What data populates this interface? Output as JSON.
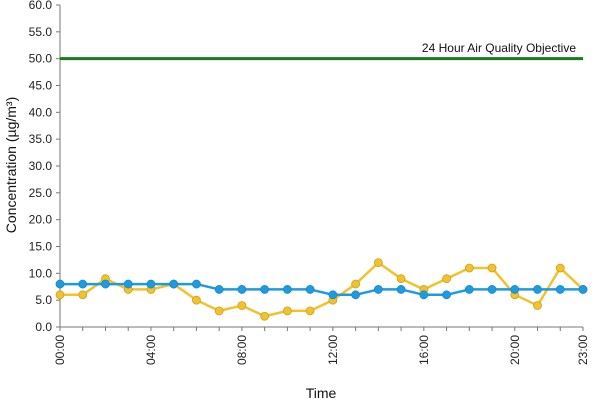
{
  "chart_data": {
    "type": "line",
    "title": "",
    "xlabel": "Time",
    "ylabel": "Concentration (µg/m³)",
    "ylim": [
      0,
      60
    ],
    "y_ticks": [
      "0.0",
      "5.0",
      "10.0",
      "15.0",
      "20.0",
      "25.0",
      "30.0",
      "35.0",
      "40.0",
      "45.0",
      "50.0",
      "55.0",
      "60.0"
    ],
    "x": [
      0,
      1,
      2,
      3,
      4,
      5,
      6,
      7,
      8,
      9,
      10,
      11,
      12,
      13,
      14,
      15,
      16,
      17,
      18,
      19,
      20,
      21,
      22,
      23
    ],
    "x_tick_labels": [
      {
        "x": 0,
        "label": "00:00"
      },
      {
        "x": 4,
        "label": "04:00"
      },
      {
        "x": 8,
        "label": "08:00"
      },
      {
        "x": 12,
        "label": "12:00"
      },
      {
        "x": 16,
        "label": "16:00"
      },
      {
        "x": 20,
        "label": "20:00"
      },
      {
        "x": 23,
        "label": "23:00"
      }
    ],
    "grid": false,
    "legend": "none",
    "series": [
      {
        "color": "#f2c22c",
        "values": [
          6,
          6,
          9,
          7,
          7,
          8,
          5,
          3,
          4,
          2,
          3,
          3,
          5,
          8,
          12,
          9,
          7,
          9,
          11,
          11,
          6,
          4,
          11,
          7
        ]
      },
      {
        "color": "#1e9be0",
        "values": [
          8,
          8,
          8,
          8,
          8,
          8,
          8,
          7,
          7,
          7,
          7,
          7,
          6,
          6,
          7,
          7,
          6,
          6,
          7,
          7,
          7,
          7,
          7,
          7
        ]
      }
    ],
    "reference_line": {
      "value": 50,
      "label": "24 Hour Air Quality Objective",
      "color": "#1a7a1a"
    }
  }
}
